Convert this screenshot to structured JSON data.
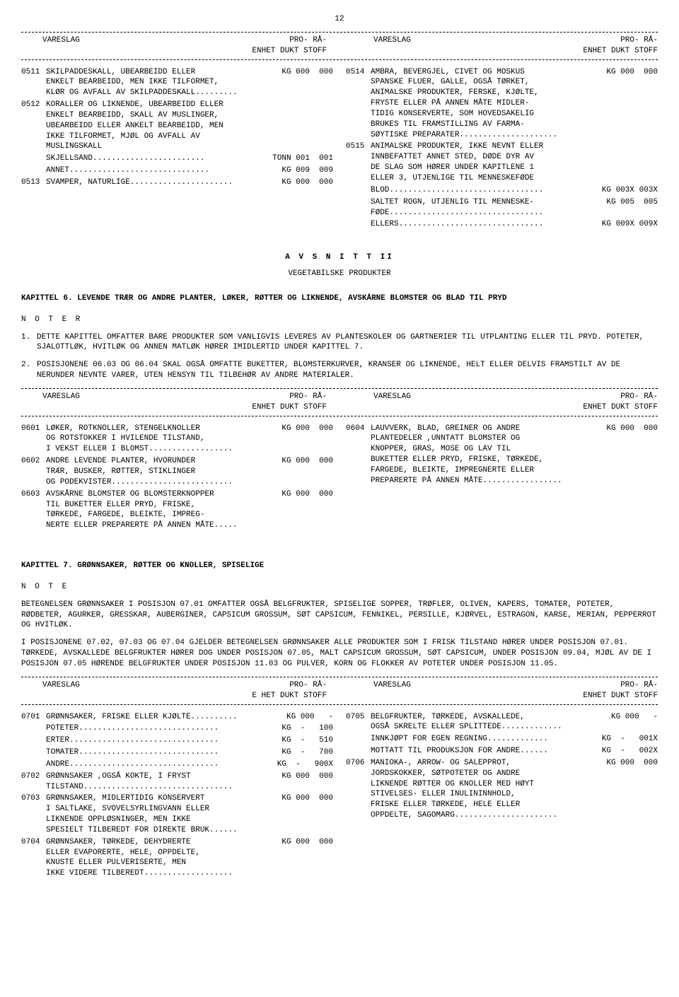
{
  "page_number": "12",
  "table_header": {
    "col1": "VARESLAG",
    "col2_line1": "PRO- RÅ-",
    "col2_line2": "ENHET DUKT STOFF",
    "col3": "VARESLAG",
    "col4_line1": "PRO- RÅ-",
    "col4_line2": "ENHET DUKT STOFF"
  },
  "block1": {
    "left": [
      {
        "code": "0511",
        "desc": "SKILPADDESKALL, UBEARBEIDD ELLER\nENKELT BEARBEIDD, MEN IKKE TILFORMET,\nKLØR OG AVFALL AV SKILPADDESKALL.........",
        "values": "KG 000  000"
      },
      {
        "code": "0512",
        "desc": "KORALLER OG LIKNENDE, UBEARBEIDD ELLER\nENKELT BEARBEIDD, SKALL AV MUSLINGER,\nUBEARBEIDD ELLER ANKELT BEARBEIDD, MEN\nIKKE TILFORMET, MJØL OG AVFALL AV\nMUSLINGSKALL",
        "values": ""
      },
      {
        "code": "",
        "desc": "  SKJELLSAND........................",
        "values": "TONN 001  001"
      },
      {
        "code": "",
        "desc": "  ANNET..............................",
        "values": " KG 009  009"
      },
      {
        "code": "0513",
        "desc": "SVAMPER, NATURLIGE......................",
        "values": "KG 000  000"
      }
    ],
    "right": [
      {
        "code": "0514",
        "desc": "AMBRA, BEVERGJEL, CIVET OG MOSKUS\nSPANSKE FLUER, GALLE, OGSÅ TØRKET,\nANIMALSKE PRODUKTER, FERSKE, KJØLTE,\nFRYSTE ELLER PÅ ANNEN MÅTE MIDLER-\nTIDIG KONSERVERTE, SOM HOVEDSAKELIG\nBRUKES TIL FRAMSTILLING AV FARMA-\nSØYTISKE PREPARATER.....................",
        "values": "KG 000  000"
      },
      {
        "code": "0515",
        "desc": "ANIMALSKE PRODUKTER, IKKE NEVNT ELLER\nINNBEFATTET ANNET STED, DØDE DYR AV\nDE SLAG SOM HØRER UNDER KAPITLENE 1\nELLER 3, UTJENLIGE TIL MENNESKEFØDE",
        "values": ""
      },
      {
        "code": "",
        "desc": "  BLOD.................................",
        "values": "KG 003X 003X"
      },
      {
        "code": "",
        "desc": "  SALTET ROGN, UTJENLIG TIL MENNESKE-\n  FØDE.................................",
        "values": "KG 005  005"
      },
      {
        "code": "",
        "desc": "  ELLERS...............................",
        "values": "KG 009X 009X"
      }
    ]
  },
  "section2": {
    "title": "A V S N I T T   II",
    "subtitle": "VEGETABILSKE PRODUKTER"
  },
  "chapter6": {
    "title": "KAPITTEL 6.  LEVENDE TRÆR OG ANDRE PLANTER, LØKER, RØTTER OG LIKNENDE, AVSKÅRNE BLOMSTER OG BLAD TIL PRYD",
    "notes_label": "N O T E R",
    "notes": [
      {
        "num": "1.",
        "text": "DETTE KAPITTEL OMFATTER BARE PRODUKTER SOM VANLIGVIS LEVERES AV PLANTESKOLER OG GARTNERIER TIL UTPLANTING ELLER TIL PRYD. POTETER, SJALOTTLØK, HVITLØK OG ANNEN MATLØK HØRER IMIDLERTID UNDER KAPITTEL 7."
      },
      {
        "num": "2.",
        "text": "POSISJONENE 06.03 OG 06.04 SKAL OGSÅ OMFATTE BUKETTER, BLOMSTERKURVER, KRANSER OG LIKNENDE, HELT ELLER DELVIS FRAMSTILT AV DE NERUNDER NEVNTE VARER, UTEN HENSYN TIL TILBEHØR AV ANDRE MATERIALER."
      }
    ]
  },
  "block2": {
    "left": [
      {
        "code": "0601",
        "desc": "LØKER, ROTKNOLLER, STENGELKNOLLER\nOG ROTSTOKKER I HVILENDE TILSTAND,\nI VEKST ELLER I BLOMST..................",
        "values": "KG 000  000"
      },
      {
        "code": "0602",
        "desc": "ANDRE LEVENDE PLANTER, HVORUNDER\nTRÆR, BUSKER, RØTTER, STIKLINGER\nOG PODEKVISTER..........................",
        "values": "KG 000  000"
      },
      {
        "code": "0603",
        "desc": "AVSKÅRNE BLOMSTER OG BLOMSTERKNOPPER\nTIL BUKETTER ELLER PRYD, FRISKE,\nTØRKEDE, FARGEDE, BLEIKTE, IMPREG-\nNERTE ELLER PREPARERTE PÅ ANNEN MÅTE.....",
        "values": "KG 000  000"
      }
    ],
    "right": [
      {
        "code": "0604",
        "desc": "LAUVVERK, BLAD, GREINER OG ANDRE\nPLANTEDELER ,UNNTATT BLOMSTER OG\nKNOPPER, GRAS, MOSE OG LAV TIL\nBUKETTER ELLER PRYD, FRISKE, TØRKEDE,\nFARGEDE, BLEIKTE, IMPREGNERTE ELLER\nPREPARERTE PÅ ANNEN MÅTE.................",
        "values": "KG 000  000"
      }
    ]
  },
  "chapter7": {
    "title": "KAPITTEL 7.  GRØNNSAKER, RØTTER OG KNOLLER, SPISELIGE",
    "notes_label": "N O T E",
    "para1": "BETEGNELSEN GRØNNSAKER I POSISJON 07.01 OMFATTER OGSÅ BELGFRUKTER, SPISELIGE SOPPER, TRØFLER, OLIVEN, KAPERS, TOMATER, POTETER, RØDBETER, AGURKER, GRESSKAR, AUBERGINER, CAPSICUM GROSSUM, SØT CAPSICUM, FENNIKEL, PERSILLE, KJØRVEL, ESTRAGON, KARSE, MERIAN, PEPPERROT OG HVITLØK.",
    "para2": "I POSISJONENE 07.02, 07.03 OG 07.04 GJELDER BETEGNELSEN GRØNNSAKER ALLE PRODUKTER SOM I FRISK TILSTAND HØRER UNDER POSISJON 07.01. TØRKEDE, AVSKALLEDE BELGFRUKTER HØRER DOG UNDER POSISJON 07.05, MALT CAPSICUM GROSSUM, SØT CAPSICUM, UNDER POSISJON 09.04, MJØL AV DE I POSISJON 07.05 HØRENDE BELGFRUKTER UNDER POSISJON 11.03 OG PULVER, KORN OG FLOKKER AV POTETER UNDER POSISJON 11.05."
  },
  "block3_header_left_enhet": "E HET",
  "block3": {
    "left": [
      {
        "code": "0701",
        "desc": "GRØNNSAKER, FRISKE ELLER KJØLTE..........",
        "values": "KG 000   -"
      },
      {
        "code": "",
        "desc": "  POTETER..............................",
        "values": "KG  -   100"
      },
      {
        "code": "",
        "desc": "  ERTER................................",
        "values": "KG  -   510"
      },
      {
        "code": "",
        "desc": "  TOMATER..............................",
        "values": "KG  -   700"
      },
      {
        "code": "",
        "desc": "  ANDRE................................",
        "values": "KG  -   900X"
      },
      {
        "code": "0702",
        "desc": "GRØNNSAKER ,OGSÅ KOKTE, I FRYST\nTILSTAND................................",
        "values": "KG 000  000"
      },
      {
        "code": "0703",
        "desc": "GRØNNSAKER, MIDLERTIDIG KONSERVERT\nI SALTLAKE, SVOVELSYRLINGVANN ELLER\nLIKNENDE OPPLØSNINGER, MEN IKKE\nSPESIELT TILBEREDT FOR DIREKTE BRUK......",
        "values": "KG 000  000"
      },
      {
        "code": "0704",
        "desc": "GRØNNSAKER, TØRKEDE, DEHYDRERTE\nELLER EVAPORERTE, HELE, OPPDELTE,\nKNUSTE ELLER PULVERISERTE, MEN\nIKKE VIDERE TILBEREDT...................",
        "values": "KG 000  000"
      }
    ],
    "right": [
      {
        "code": "0705",
        "desc": "BELGFRUKTER, TØRKEDE, AVSKALLEDE,\nOGSÅ SKRELTE ELLER SPLITTEDE.............",
        "values": "KG 000   -"
      },
      {
        "code": "",
        "desc": "  INNKJØPT FOR EGEN REGNING.............",
        "values": "KG  -   001X"
      },
      {
        "code": "",
        "desc": "  MOTTATT TIL PRODUKSJON FOR ANDRE......",
        "values": "KG  -   002X"
      },
      {
        "code": "0706",
        "desc": "MANIOKA-, ARROW- OG SALEPPROT,\nJORDSKOKKER, SØTPOTETER OG ANDRE\nLIKNENDE RØTTER OG KNOLLER MED HØYT\nSTIVELSES- ELLER INULININNHOLD,\nFRISKE ELLER TØRKEDE, HELE ELLER\nOPPDELTE, SAGOMARG......................",
        "values": "KG 000  000"
      }
    ]
  }
}
